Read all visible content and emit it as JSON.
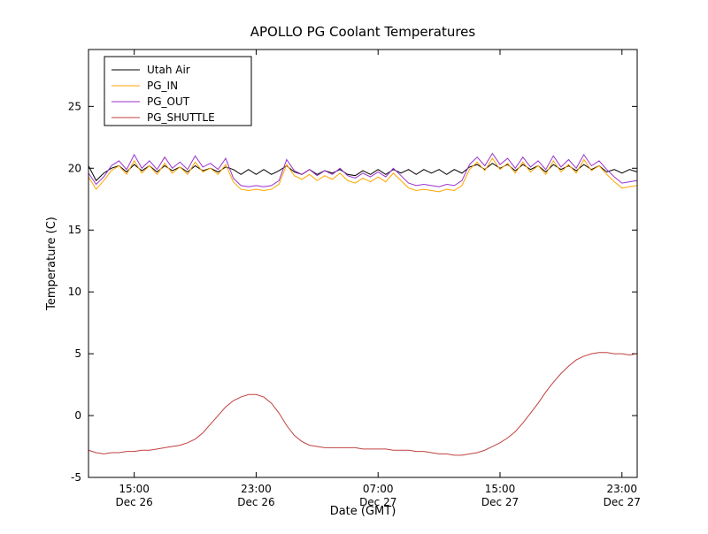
{
  "chart_data": {
    "type": "line",
    "title": "APOLLO PG Coolant Temperatures",
    "xlabel": "Date (GMT)",
    "ylabel": "Temperature (C)",
    "grid": false,
    "legend_position": "upper-left",
    "x_unit": "hours since Dec 26 00:00 GMT",
    "xlim": [
      12,
      48
    ],
    "ylim": [
      -5,
      29.6
    ],
    "yticks": [
      -5,
      0,
      5,
      10,
      15,
      20,
      25
    ],
    "xticks": [
      {
        "value": 15,
        "line1": "15:00",
        "line2": "Dec 26"
      },
      {
        "value": 23,
        "line1": "23:00",
        "line2": "Dec 26"
      },
      {
        "value": 31,
        "line1": "07:00",
        "line2": "Dec 27"
      },
      {
        "value": 39,
        "line1": "15:00",
        "line2": "Dec 27"
      },
      {
        "value": 47,
        "line1": "23:00",
        "line2": "Dec 27"
      }
    ],
    "x": [
      12,
      12.5,
      13,
      13.5,
      14,
      14.5,
      15,
      15.5,
      16,
      16.5,
      17,
      17.5,
      18,
      18.5,
      19,
      19.5,
      20,
      20.5,
      21,
      21.5,
      22,
      22.5,
      23,
      23.5,
      24,
      24.5,
      25,
      25.5,
      26,
      26.5,
      27,
      27.5,
      28,
      28.5,
      29,
      29.5,
      30,
      30.5,
      31,
      31.5,
      32,
      32.5,
      33,
      33.5,
      34,
      34.5,
      35,
      35.5,
      36,
      36.5,
      37,
      37.5,
      38,
      38.5,
      39,
      39.5,
      40,
      40.5,
      41,
      41.5,
      42,
      42.5,
      43,
      43.5,
      44,
      44.5,
      45,
      45.5,
      46,
      46.5,
      47,
      47.5,
      48
    ],
    "series": [
      {
        "name": "Utah Air",
        "color": "#000000",
        "values": [
          20.2,
          19.0,
          19.6,
          20.0,
          20.2,
          19.7,
          20.3,
          19.8,
          20.2,
          19.7,
          20.2,
          19.8,
          20.1,
          19.7,
          20.2,
          19.8,
          20.0,
          19.7,
          20.1,
          19.9,
          19.5,
          19.9,
          19.5,
          19.9,
          19.5,
          19.8,
          20.2,
          19.7,
          19.5,
          19.9,
          19.5,
          19.8,
          19.6,
          19.9,
          19.5,
          19.4,
          19.8,
          19.5,
          19.9,
          19.5,
          19.9,
          19.6,
          19.9,
          19.5,
          19.9,
          19.6,
          19.9,
          19.5,
          19.9,
          19.6,
          20.1,
          20.3,
          19.9,
          20.4,
          20.0,
          20.3,
          19.8,
          20.3,
          19.9,
          20.2,
          19.7,
          20.3,
          19.9,
          20.2,
          19.8,
          20.3,
          19.9,
          20.2,
          19.7,
          19.9,
          19.6,
          19.9,
          19.7
        ]
      },
      {
        "name": "PG_IN",
        "color": "#ffa500",
        "values": [
          19.3,
          18.3,
          19.0,
          19.8,
          20.2,
          19.5,
          20.6,
          19.6,
          20.2,
          19.5,
          20.4,
          19.6,
          20.1,
          19.5,
          20.5,
          19.7,
          20.0,
          19.5,
          20.3,
          18.9,
          18.3,
          18.2,
          18.3,
          18.2,
          18.3,
          18.7,
          20.3,
          19.4,
          19.1,
          19.5,
          19.0,
          19.4,
          19.1,
          19.6,
          19.0,
          18.8,
          19.2,
          18.9,
          19.3,
          18.9,
          19.6,
          19.0,
          18.4,
          18.2,
          18.3,
          18.2,
          18.1,
          18.3,
          18.2,
          18.6,
          19.9,
          20.5,
          19.8,
          20.8,
          19.9,
          20.4,
          19.6,
          20.5,
          19.7,
          20.2,
          19.5,
          20.6,
          19.7,
          20.3,
          19.6,
          20.7,
          19.8,
          20.2,
          19.5,
          18.9,
          18.4,
          18.5,
          18.6
        ]
      },
      {
        "name": "PG_OUT",
        "color": "#9932cc",
        "values": [
          19.6,
          18.7,
          19.3,
          20.2,
          20.6,
          19.9,
          21.1,
          20.0,
          20.6,
          19.9,
          20.9,
          20.0,
          20.5,
          19.9,
          21.0,
          20.1,
          20.4,
          19.9,
          20.8,
          19.2,
          18.6,
          18.5,
          18.6,
          18.5,
          18.6,
          19.0,
          20.7,
          19.8,
          19.5,
          19.9,
          19.4,
          19.8,
          19.5,
          20.0,
          19.4,
          19.2,
          19.6,
          19.3,
          19.7,
          19.3,
          20.0,
          19.4,
          18.8,
          18.6,
          18.7,
          18.6,
          18.5,
          18.7,
          18.6,
          19.0,
          20.3,
          20.9,
          20.2,
          21.2,
          20.3,
          20.8,
          20.0,
          20.9,
          20.1,
          20.6,
          19.9,
          21.0,
          20.1,
          20.7,
          20.0,
          21.1,
          20.2,
          20.6,
          19.9,
          19.3,
          18.8,
          18.9,
          19.0
        ]
      },
      {
        "name": "PG_SHUTTLE",
        "color": "#c04040",
        "values": [
          -2.8,
          -3.0,
          -3.1,
          -3.0,
          -3.0,
          -2.9,
          -2.9,
          -2.8,
          -2.8,
          -2.7,
          -2.6,
          -2.5,
          -2.4,
          -2.2,
          -1.9,
          -1.4,
          -0.7,
          0.0,
          0.7,
          1.2,
          1.5,
          1.7,
          1.7,
          1.5,
          1.0,
          0.2,
          -0.8,
          -1.6,
          -2.1,
          -2.4,
          -2.5,
          -2.6,
          -2.6,
          -2.6,
          -2.6,
          -2.6,
          -2.7,
          -2.7,
          -2.7,
          -2.7,
          -2.8,
          -2.8,
          -2.8,
          -2.9,
          -2.9,
          -3.0,
          -3.1,
          -3.1,
          -3.2,
          -3.2,
          -3.1,
          -3.0,
          -2.8,
          -2.5,
          -2.2,
          -1.8,
          -1.3,
          -0.6,
          0.2,
          1.0,
          1.9,
          2.7,
          3.4,
          4.0,
          4.5,
          4.8,
          5.0,
          5.1,
          5.1,
          5.0,
          5.0,
          4.9,
          5.0
        ]
      }
    ]
  }
}
